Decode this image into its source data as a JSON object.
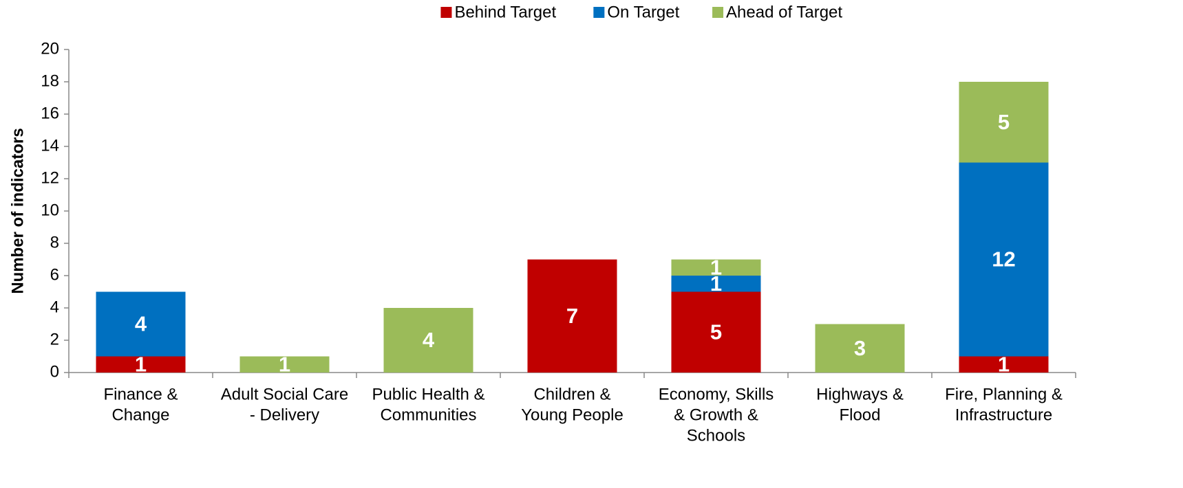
{
  "chart_data": {
    "type": "stacked_bar",
    "y_label": "Number of indicators",
    "categories": [
      [
        "Finance  &",
        "Change"
      ],
      [
        "Adult Social Care",
        "- Delivery"
      ],
      [
        "Public Health &",
        "Communities"
      ],
      [
        "Children &",
        "Young People"
      ],
      [
        "Economy, Skills",
        "& Growth &",
        "Schools"
      ],
      [
        "Highways &",
        "Flood"
      ],
      [
        "Fire, Planning &",
        "Infrastructure"
      ]
    ],
    "series": [
      {
        "name": "Behind Target",
        "color": "#c00000",
        "values": [
          1,
          0,
          0,
          7,
          5,
          0,
          1
        ]
      },
      {
        "name": "On Target",
        "color": "#0070c0",
        "values": [
          4,
          0,
          0,
          0,
          1,
          0,
          12
        ]
      },
      {
        "name": "Ahead of Target",
        "color": "#9bbb59",
        "values": [
          0,
          1,
          4,
          0,
          1,
          3,
          5
        ]
      }
    ],
    "ylim": [
      0,
      20
    ],
    "yticks": [
      0,
      2,
      4,
      6,
      8,
      10,
      12,
      14,
      16,
      18,
      20
    ],
    "legend": "top",
    "grid": false
  }
}
